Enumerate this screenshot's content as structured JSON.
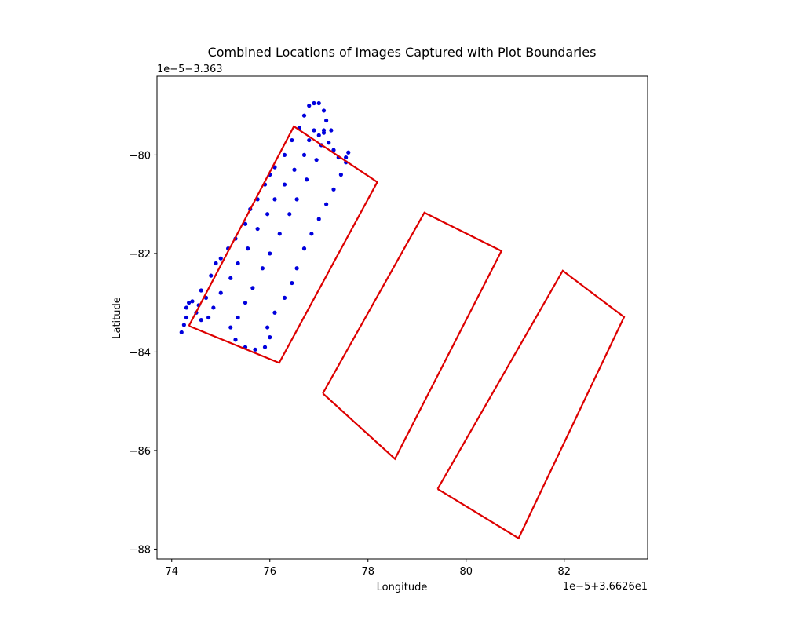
{
  "chart_data": {
    "type": "scatter",
    "title": "Combined Locations of Images Captured with Plot Boundaries",
    "xlabel": "Longitude",
    "ylabel": "Latitude",
    "x_offset_text": "1e−5+3.6626e1",
    "y_offset_text": "1e−5−3.363",
    "xlim": [
      73.7,
      83.7
    ],
    "ylim": [
      -88.2,
      -78.4
    ],
    "x_ticks": [
      74,
      76,
      78,
      80,
      82
    ],
    "y_ticks": [
      -80,
      -82,
      -84,
      -86,
      -88
    ],
    "x_tick_labels": [
      "74",
      "76",
      "78",
      "80",
      "82"
    ],
    "y_tick_labels": [
      "−80",
      "−82",
      "−84",
      "−86",
      "−88"
    ],
    "grid": false,
    "legend": "none",
    "colors": {
      "points": "#0000dd",
      "boundary": "#dd0000"
    },
    "plot_boundaries": [
      [
        [
          74.35,
          -83.47
        ],
        [
          76.49,
          -79.42
        ],
        [
          78.19,
          -80.55
        ],
        [
          76.19,
          -84.22
        ],
        [
          74.35,
          -83.47
        ]
      ],
      [
        [
          77.08,
          -84.84
        ],
        [
          79.15,
          -81.17
        ],
        [
          80.72,
          -81.95
        ],
        [
          78.55,
          -86.17
        ],
        [
          77.08,
          -84.84
        ]
      ],
      [
        [
          79.42,
          -86.78
        ],
        [
          81.97,
          -82.35
        ],
        [
          83.22,
          -83.29
        ],
        [
          81.07,
          -87.78
        ],
        [
          79.42,
          -86.78
        ]
      ]
    ],
    "image_locations": [
      [
        74.2,
        -83.6
      ],
      [
        74.25,
        -83.45
      ],
      [
        74.3,
        -83.3
      ],
      [
        74.3,
        -83.1
      ],
      [
        74.35,
        -83.0
      ],
      [
        74.42,
        -82.97
      ],
      [
        74.6,
        -82.75
      ],
      [
        74.8,
        -82.45
      ],
      [
        74.9,
        -82.2
      ],
      [
        75.0,
        -82.1
      ],
      [
        75.15,
        -81.9
      ],
      [
        75.3,
        -81.7
      ],
      [
        75.5,
        -81.4
      ],
      [
        75.6,
        -81.1
      ],
      [
        75.75,
        -80.9
      ],
      [
        75.9,
        -80.6
      ],
      [
        76.0,
        -80.4
      ],
      [
        76.1,
        -80.25
      ],
      [
        76.3,
        -80.0
      ],
      [
        76.45,
        -79.7
      ],
      [
        76.6,
        -79.45
      ],
      [
        76.7,
        -79.2
      ],
      [
        76.8,
        -79.0
      ],
      [
        76.9,
        -78.95
      ],
      [
        77.0,
        -78.95
      ],
      [
        77.1,
        -79.1
      ],
      [
        77.15,
        -79.3
      ],
      [
        77.1,
        -79.5
      ],
      [
        77.0,
        -79.6
      ],
      [
        76.9,
        -79.5
      ],
      [
        76.8,
        -79.7
      ],
      [
        76.7,
        -80.0
      ],
      [
        76.5,
        -80.3
      ],
      [
        76.3,
        -80.6
      ],
      [
        76.1,
        -80.9
      ],
      [
        75.95,
        -81.2
      ],
      [
        75.75,
        -81.5
      ],
      [
        75.55,
        -81.9
      ],
      [
        75.35,
        -82.2
      ],
      [
        75.2,
        -82.5
      ],
      [
        75.0,
        -82.8
      ],
      [
        74.85,
        -83.1
      ],
      [
        74.75,
        -83.3
      ],
      [
        74.6,
        -83.35
      ],
      [
        74.5,
        -83.2
      ],
      [
        74.55,
        -83.05
      ],
      [
        74.7,
        -82.9
      ],
      [
        75.3,
        -83.75
      ],
      [
        75.5,
        -83.9
      ],
      [
        75.7,
        -83.95
      ],
      [
        75.9,
        -83.9
      ],
      [
        76.0,
        -83.7
      ],
      [
        75.95,
        -83.5
      ],
      [
        76.1,
        -83.2
      ],
      [
        76.3,
        -82.9
      ],
      [
        76.45,
        -82.6
      ],
      [
        76.55,
        -82.3
      ],
      [
        76.7,
        -81.9
      ],
      [
        76.85,
        -81.6
      ],
      [
        77.0,
        -81.3
      ],
      [
        77.15,
        -81.0
      ],
      [
        77.3,
        -80.7
      ],
      [
        77.45,
        -80.4
      ],
      [
        77.55,
        -80.15
      ],
      [
        77.6,
        -79.95
      ],
      [
        77.55,
        -80.05
      ],
      [
        77.4,
        -80.05
      ],
      [
        77.3,
        -79.9
      ],
      [
        77.2,
        -79.75
      ],
      [
        77.25,
        -79.5
      ],
      [
        77.1,
        -79.55
      ],
      [
        77.05,
        -79.8
      ],
      [
        76.95,
        -80.1
      ],
      [
        76.75,
        -80.5
      ],
      [
        76.55,
        -80.9
      ],
      [
        76.4,
        -81.2
      ],
      [
        76.2,
        -81.6
      ],
      [
        76.0,
        -82.0
      ],
      [
        75.85,
        -82.3
      ],
      [
        75.65,
        -82.7
      ],
      [
        75.5,
        -83.0
      ],
      [
        75.35,
        -83.3
      ],
      [
        75.2,
        -83.5
      ]
    ]
  }
}
